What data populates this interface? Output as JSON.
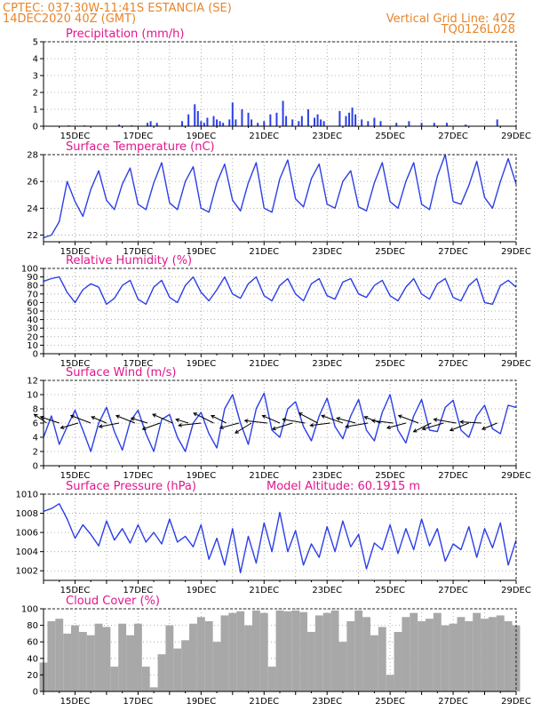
{
  "header": {
    "line1": "CPTEC:   037:30W-11:41S   ESTANCIA (SE)",
    "line2": "14DEC2020 40Z (GMT)",
    "grid_note": "Vertical Grid Line: 40Z",
    "code": "TQ0126L028"
  },
  "model_altitude": "Model Altitude: 60.1915 m",
  "date_labels": [
    "15DEC",
    "17DEC",
    "19DEC",
    "21DEC",
    "23DEC",
    "25DEC",
    "27DEC",
    "29DEC"
  ],
  "colors": {
    "header": "#e8852a",
    "title": "#e0168c",
    "line": "#2c3fe6",
    "bars": "#2c3fe6",
    "cloud": "#a8a8a8"
  },
  "chart_data": [
    {
      "type": "bar",
      "title": "Precipitation (mm/h)",
      "x_unit": "day_index",
      "x_range": [
        0,
        15
      ],
      "ylim": [
        0,
        5
      ],
      "yticks": [
        0,
        1,
        2,
        3,
        4,
        5
      ],
      "x": [
        0.8,
        1.3,
        2.4,
        2.8,
        3.3,
        3.4,
        3.6,
        4.4,
        4.6,
        4.8,
        4.9,
        5.0,
        5.1,
        5.2,
        5.4,
        5.5,
        5.6,
        5.7,
        5.9,
        6.0,
        6.1,
        6.3,
        6.5,
        6.6,
        6.8,
        7.0,
        7.2,
        7.4,
        7.6,
        7.7,
        7.9,
        8.1,
        8.2,
        8.4,
        8.6,
        8.7,
        8.8,
        8.9,
        9.4,
        9.6,
        9.7,
        9.8,
        9.9,
        10.1,
        10.3,
        10.5,
        10.7,
        11.2,
        11.6,
        12.0,
        12.4,
        12.8,
        13.4,
        14.4
      ],
      "values": [
        0.05,
        0.05,
        0.1,
        0.05,
        0.2,
        0.3,
        0.2,
        0.3,
        0.7,
        1.3,
        0.9,
        0.3,
        0.2,
        0.5,
        0.6,
        0.4,
        0.3,
        0.2,
        0.4,
        1.4,
        0.4,
        1.0,
        0.8,
        0.4,
        0.2,
        0.3,
        0.7,
        0.8,
        1.5,
        0.6,
        0.4,
        0.3,
        0.6,
        1.0,
        0.5,
        0.7,
        0.4,
        0.3,
        0.9,
        0.6,
        0.8,
        1.1,
        0.7,
        0.4,
        0.3,
        0.5,
        0.3,
        0.2,
        0.3,
        0.2,
        0.2,
        0.2,
        0.1,
        0.4
      ]
    },
    {
      "type": "line",
      "title": "Surface Temperature (nC)",
      "x_unit": "day_index",
      "x_range": [
        0,
        15
      ],
      "ylim": [
        21.5,
        28
      ],
      "yticks": [
        22,
        24,
        26,
        28
      ],
      "x": [
        0.0,
        0.25,
        0.5,
        0.75,
        1.0,
        1.25,
        1.5,
        1.75,
        2.0,
        2.25,
        2.5,
        2.75,
        3.0,
        3.25,
        3.5,
        3.75,
        4.0,
        4.25,
        4.5,
        4.75,
        5.0,
        5.25,
        5.5,
        5.75,
        6.0,
        6.25,
        6.5,
        6.75,
        7.0,
        7.25,
        7.5,
        7.75,
        8.0,
        8.25,
        8.5,
        8.75,
        9.0,
        9.25,
        9.5,
        9.75,
        10.0,
        10.25,
        10.5,
        10.75,
        11.0,
        11.25,
        11.5,
        11.75,
        12.0,
        12.25,
        12.5,
        12.75,
        13.0,
        13.25,
        13.5,
        13.75,
        14.0,
        14.25,
        14.5,
        14.75,
        15.0
      ],
      "values": [
        21.8,
        22.0,
        23.0,
        26.0,
        24.5,
        23.4,
        25.4,
        26.8,
        24.6,
        23.9,
        25.8,
        27.0,
        24.3,
        23.9,
        25.9,
        27.4,
        24.4,
        23.9,
        26.0,
        27.1,
        24.0,
        23.7,
        25.9,
        27.3,
        24.6,
        23.8,
        25.9,
        27.4,
        24.0,
        23.7,
        26.2,
        27.6,
        24.7,
        24.1,
        26.2,
        27.3,
        24.3,
        24.0,
        26.0,
        26.8,
        24.1,
        23.8,
        25.9,
        27.4,
        24.5,
        24.0,
        26.0,
        27.4,
        24.3,
        23.9,
        26.4,
        28.0,
        24.5,
        24.3,
        25.7,
        27.5,
        24.8,
        24.0,
        26.0,
        27.7,
        25.8
      ]
    },
    {
      "type": "line",
      "title": "Relative Humidity (%)",
      "x_unit": "day_index",
      "x_range": [
        0,
        15
      ],
      "ylim": [
        0,
        100
      ],
      "yticks": [
        0,
        10,
        20,
        30,
        40,
        50,
        60,
        70,
        80,
        90,
        100
      ],
      "x": [
        0.0,
        0.25,
        0.5,
        0.75,
        1.0,
        1.25,
        1.5,
        1.75,
        2.0,
        2.25,
        2.5,
        2.75,
        3.0,
        3.25,
        3.5,
        3.75,
        4.0,
        4.25,
        4.5,
        4.75,
        5.0,
        5.25,
        5.5,
        5.75,
        6.0,
        6.25,
        6.5,
        6.75,
        7.0,
        7.25,
        7.5,
        7.75,
        8.0,
        8.25,
        8.5,
        8.75,
        9.0,
        9.25,
        9.5,
        9.75,
        10.0,
        10.25,
        10.5,
        10.75,
        11.0,
        11.25,
        11.5,
        11.75,
        12.0,
        12.25,
        12.5,
        12.75,
        13.0,
        13.25,
        13.5,
        13.75,
        14.0,
        14.25,
        14.5,
        14.75,
        15.0
      ],
      "values": [
        85,
        88,
        90,
        72,
        60,
        75,
        82,
        78,
        58,
        65,
        80,
        86,
        64,
        58,
        78,
        86,
        66,
        60,
        80,
        90,
        72,
        62,
        75,
        90,
        70,
        65,
        82,
        90,
        68,
        62,
        80,
        88,
        70,
        62,
        82,
        88,
        68,
        64,
        84,
        88,
        70,
        66,
        80,
        86,
        68,
        62,
        78,
        88,
        70,
        64,
        82,
        88,
        66,
        62,
        80,
        88,
        60,
        58,
        80,
        86,
        78
      ]
    },
    {
      "type": "line",
      "title": "Surface Wind (m/s)",
      "x_unit": "day_index",
      "x_range": [
        0,
        15
      ],
      "ylim": [
        0,
        12
      ],
      "yticks": [
        0,
        2,
        4,
        6,
        8,
        10,
        12
      ],
      "x": [
        0.0,
        0.25,
        0.5,
        0.75,
        1.0,
        1.25,
        1.5,
        1.75,
        2.0,
        2.25,
        2.5,
        2.75,
        3.0,
        3.25,
        3.5,
        3.75,
        4.0,
        4.25,
        4.5,
        4.75,
        5.0,
        5.25,
        5.5,
        5.75,
        6.0,
        6.25,
        6.5,
        6.75,
        7.0,
        7.25,
        7.5,
        7.75,
        8.0,
        8.25,
        8.5,
        8.75,
        9.0,
        9.25,
        9.5,
        9.75,
        10.0,
        10.25,
        10.5,
        10.75,
        11.0,
        11.25,
        11.5,
        11.75,
        12.0,
        12.25,
        12.5,
        12.75,
        13.0,
        13.25,
        13.5,
        13.75,
        14.0,
        14.25,
        14.5,
        14.75,
        15.0
      ],
      "values": [
        4.0,
        7.0,
        3.0,
        5.5,
        7.8,
        5.0,
        2.0,
        6.0,
        8.2,
        4.8,
        2.2,
        6.2,
        7.8,
        4.5,
        2.0,
        6.5,
        7.2,
        4.0,
        2.0,
        6.0,
        7.5,
        4.5,
        2.5,
        8.0,
        10.0,
        6.0,
        3.0,
        8.0,
        10.2,
        5.0,
        4.0,
        8.0,
        9.0,
        5.5,
        3.5,
        7.0,
        9.5,
        5.5,
        3.8,
        7.0,
        9.3,
        5.0,
        3.5,
        7.5,
        10.0,
        5.0,
        3.2,
        7.0,
        9.3,
        5.0,
        4.8,
        8.2,
        9.2,
        5.0,
        4.0,
        7.0,
        8.5,
        5.2,
        4.5,
        8.5,
        8.2
      ]
    },
    {
      "type": "line",
      "title": "Surface Pressure (hPa)",
      "x_unit": "day_index",
      "x_range": [
        0,
        15
      ],
      "ylim": [
        1001,
        1010
      ],
      "yticks": [
        1002,
        1004,
        1006,
        1008,
        1010
      ],
      "x": [
        0.0,
        0.25,
        0.5,
        0.75,
        1.0,
        1.25,
        1.5,
        1.75,
        2.0,
        2.25,
        2.5,
        2.75,
        3.0,
        3.25,
        3.5,
        3.75,
        4.0,
        4.25,
        4.5,
        4.75,
        5.0,
        5.25,
        5.5,
        5.75,
        6.0,
        6.25,
        6.5,
        6.75,
        7.0,
        7.25,
        7.5,
        7.75,
        8.0,
        8.25,
        8.5,
        8.75,
        9.0,
        9.25,
        9.5,
        9.75,
        10.0,
        10.25,
        10.5,
        10.75,
        11.0,
        11.25,
        11.5,
        11.75,
        12.0,
        12.25,
        12.5,
        12.75,
        13.0,
        13.25,
        13.5,
        13.75,
        14.0,
        14.25,
        14.5,
        14.75,
        15.0
      ],
      "values": [
        1008.2,
        1008.5,
        1009.0,
        1007.4,
        1005.4,
        1006.8,
        1005.8,
        1004.6,
        1007.2,
        1005.2,
        1006.4,
        1004.9,
        1006.8,
        1005.0,
        1006.0,
        1004.8,
        1007.4,
        1005.0,
        1005.6,
        1004.5,
        1006.8,
        1003.2,
        1005.4,
        1002.6,
        1006.4,
        1001.8,
        1005.6,
        1002.8,
        1007.0,
        1004.0,
        1008.1,
        1004.0,
        1006.2,
        1002.6,
        1004.8,
        1003.4,
        1006.6,
        1004.0,
        1007.2,
        1004.5,
        1005.8,
        1002.2,
        1004.9,
        1004.2,
        1006.8,
        1003.8,
        1006.4,
        1004.2,
        1007.4,
        1004.6,
        1006.4,
        1003.0,
        1004.8,
        1004.2,
        1006.6,
        1003.4,
        1006.4,
        1004.4,
        1007.0,
        1002.6,
        1005.2
      ]
    },
    {
      "type": "area",
      "title": "Cloud Cover (%)",
      "x_unit": "day_index",
      "x_range": [
        0,
        15
      ],
      "ylim": [
        0,
        100
      ],
      "yticks": [
        0,
        20,
        40,
        60,
        80,
        100
      ],
      "x": [
        0.0,
        0.25,
        0.5,
        0.75,
        1.0,
        1.25,
        1.5,
        1.75,
        2.0,
        2.25,
        2.5,
        2.75,
        3.0,
        3.25,
        3.5,
        3.75,
        4.0,
        4.25,
        4.5,
        4.75,
        5.0,
        5.25,
        5.5,
        5.75,
        6.0,
        6.25,
        6.5,
        6.75,
        7.0,
        7.25,
        7.5,
        7.75,
        8.0,
        8.25,
        8.5,
        8.75,
        9.0,
        9.25,
        9.5,
        9.75,
        10.0,
        10.25,
        10.5,
        10.75,
        11.0,
        11.25,
        11.5,
        11.75,
        12.0,
        12.25,
        12.5,
        12.75,
        13.0,
        13.25,
        13.5,
        13.75,
        14.0,
        14.25,
        14.5,
        14.75,
        15.0
      ],
      "values": [
        35,
        85,
        88,
        70,
        80,
        72,
        68,
        82,
        78,
        30,
        82,
        68,
        82,
        30,
        5,
        45,
        80,
        52,
        62,
        82,
        90,
        85,
        60,
        92,
        95,
        97,
        80,
        98,
        95,
        30,
        98,
        97,
        98,
        96,
        72,
        92,
        95,
        98,
        60,
        85,
        98,
        90,
        68,
        78,
        20,
        72,
        90,
        95,
        85,
        88,
        95,
        80,
        82,
        90,
        85,
        95,
        88,
        90,
        92,
        85,
        80
      ]
    }
  ],
  "wind_vectors": {
    "x": [
      0.1,
      0.5,
      1.1,
      1.5,
      2.0,
      2.4,
      2.9,
      3.3,
      3.7,
      4.1,
      4.6,
      5.0,
      5.4,
      5.8,
      6.2,
      6.6,
      7.1,
      7.5,
      7.9,
      8.3,
      8.7,
      9.1,
      9.5,
      9.9,
      10.3,
      10.7,
      11.1,
      11.5,
      11.9,
      12.3,
      12.7,
      13.1,
      13.5,
      13.9,
      14.4
    ],
    "u": [
      -1.0,
      -1.5,
      -1.4,
      -1.6,
      -1.2,
      -1.6,
      -1.5,
      -1.3,
      -1.4,
      -1.6,
      -1.0,
      -1.8,
      -1.6,
      -1.2,
      -1.5,
      -1.3,
      -1.8,
      -1.4,
      -1.6,
      -1.8,
      -1.5,
      -1.6,
      -1.7,
      -1.5,
      -1.8,
      -1.3,
      -1.7,
      -1.5,
      -1.6,
      -1.4,
      -1.7,
      -1.8,
      -1.5,
      -1.7,
      -1.2
    ],
    "v": [
      0.7,
      0.5,
      -0.4,
      0.6,
      0.5,
      -0.3,
      0.6,
      0.4,
      -0.5,
      0.7,
      0.3,
      -0.2,
      0.8,
      0.6,
      -0.4,
      -0.8,
      0.2,
      0.6,
      -0.5,
      0.3,
      0.8,
      -0.2,
      0.6,
      0.4,
      -0.3,
      0.5,
      0.2,
      -0.4,
      0.6,
      -0.7,
      -0.5,
      0.3,
      -0.6,
      0.1,
      -0.5
    ]
  }
}
